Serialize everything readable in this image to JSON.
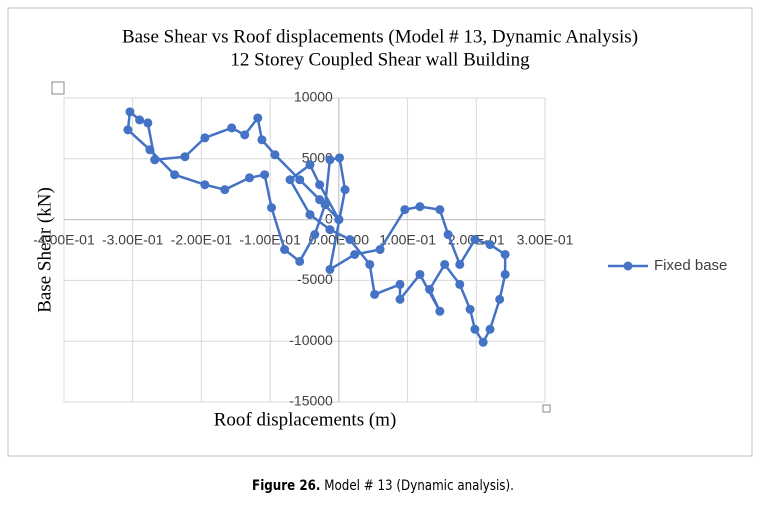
{
  "chart_data": {
    "type": "line",
    "title": "Base Shear vs Roof displacements (Model # 13, Dynamic Analysis)",
    "subtitle": "12 Storey Coupled Shear wall Building",
    "x_label": "Roof displacements (m)",
    "y_label": "Base Shear (kN)",
    "xlim": [
      -0.4,
      0.3
    ],
    "xticks": [
      {
        "value": -0.4,
        "label": "-4.00E-01"
      },
      {
        "value": -0.3,
        "label": "-3.00E-01"
      },
      {
        "value": -0.2,
        "label": "-2.00E-01"
      },
      {
        "value": -0.1,
        "label": "-1.00E-01"
      },
      {
        "value": 0,
        "label": "0.00E+00"
      },
      {
        "value": 0.1,
        "label": "1.00E-01"
      },
      {
        "value": 0.2,
        "label": "2.00E-01"
      },
      {
        "value": 0.3,
        "label": "3.00E-01"
      }
    ],
    "ylim": [
      -15000,
      10000
    ],
    "yticks": [
      -15000,
      -10000,
      -5000,
      0,
      5000,
      10000
    ],
    "grid": true,
    "legend": "right",
    "x": [
      0,
      -0.028,
      -0.057,
      -0.093,
      -0.112,
      -0.118,
      -0.137,
      -0.156,
      -0.195,
      -0.224,
      -0.268,
      -0.278,
      -0.29,
      -0.304,
      -0.307,
      -0.275,
      -0.239,
      -0.195,
      -0.166,
      -0.13,
      -0.108,
      -0.098,
      -0.079,
      -0.057,
      -0.035,
      -0.02,
      -0.013,
      0.001,
      0.009,
      -0.013,
      0.023,
      0.06,
      0.096,
      0.118,
      0.147,
      0.159,
      0.176,
      0.198,
      0.22,
      0.242,
      0.242,
      0.234,
      0.22,
      0.21,
      0.198,
      0.191,
      0.176,
      0.154,
      0.132,
      0.147,
      0.118,
      0.089,
      0.089,
      0.052,
      0.045,
      0.016,
      -0.013,
      -0.042,
      -0.071,
      -0.042,
      -0.028,
      0
    ],
    "series": [
      {
        "name": "Fixed base",
        "color": "#4472c4",
        "values": [
          0,
          1640,
          3280,
          5330,
          6560,
          8360,
          6970,
          7540,
          6720,
          5170,
          4920,
          7950,
          8200,
          8860,
          7380,
          5740,
          3690,
          2870,
          2460,
          3440,
          3690,
          980,
          -2460,
          -3440,
          -1230,
          1230,
          4920,
          5080,
          2460,
          -4100,
          -2870,
          -2460,
          820,
          1070,
          820,
          -1230,
          -3690,
          -1640,
          -2050,
          -2870,
          -4510,
          -6560,
          -9020,
          -10090,
          -9020,
          -7380,
          -5330,
          -3690,
          -5740,
          -7540,
          -4510,
          -6560,
          -5330,
          -6150,
          -3690,
          -1640,
          -820,
          410,
          3280,
          4510,
          2870,
          0
        ]
      }
    ]
  },
  "caption": {
    "label": "Figure 26.",
    "text": "Model # 13 (Dynamic analysis)."
  }
}
